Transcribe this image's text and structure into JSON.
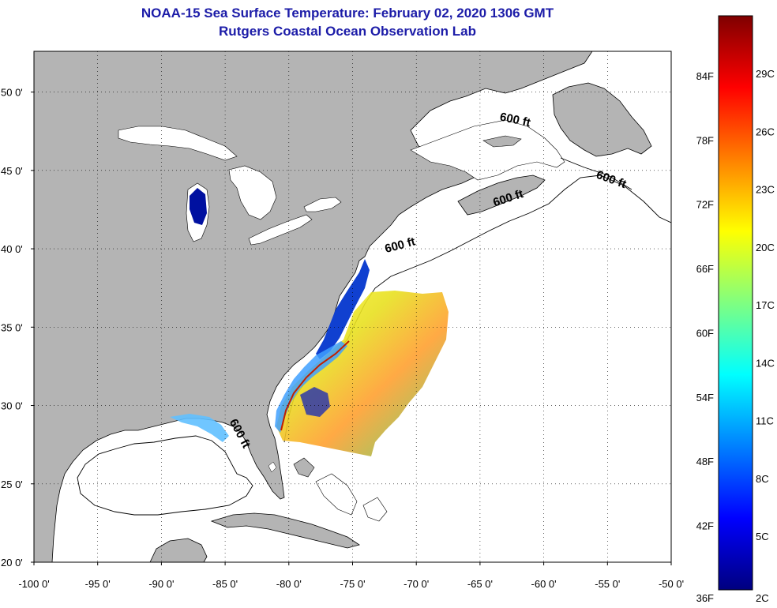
{
  "header": {
    "title": "NOAA-15 Sea Surface Temperature:  February 02, 2020 1306 GMT",
    "subtitle": "Rutgers Coastal Ocean Observation Lab"
  },
  "map": {
    "lon_range": [
      -100,
      -50
    ],
    "lat_range": [
      20,
      52.6
    ],
    "lon_ticks": [
      {
        "value": -100,
        "label": "-100 0'"
      },
      {
        "value": -95,
        "label": "-95 0'"
      },
      {
        "value": -90,
        "label": "-90 0'"
      },
      {
        "value": -85,
        "label": "-85 0'"
      },
      {
        "value": -80,
        "label": "-80 0'"
      },
      {
        "value": -75,
        "label": "-75 0'"
      },
      {
        "value": -70,
        "label": "-70 0'"
      },
      {
        "value": -65,
        "label": "-65 0'"
      },
      {
        "value": -60,
        "label": "-60 0'"
      },
      {
        "value": -55,
        "label": "-55 0'"
      },
      {
        "value": -50,
        "label": "-50 0'"
      }
    ],
    "lat_ticks": [
      {
        "value": 50,
        "label": "50 0'"
      },
      {
        "value": 45,
        "label": "45 0'"
      },
      {
        "value": 40,
        "label": "40 0'"
      },
      {
        "value": 35,
        "label": "35 0'"
      },
      {
        "value": 30,
        "label": "30 0'"
      },
      {
        "value": 25,
        "label": "25 0'"
      },
      {
        "value": 20,
        "label": "20 0'"
      }
    ],
    "grid": "dotted",
    "land_color": "#b4b4b4",
    "ocean_color": "#ffffff",
    "depth_contours": [
      {
        "label": "600 ft",
        "lon": -62.3,
        "lat": 48.0,
        "rotate": 12
      },
      {
        "label": "600 ft",
        "lon": -54.8,
        "lat": 44.2,
        "rotate": 20
      },
      {
        "label": "600 ft",
        "lon": -62.7,
        "lat": 43.0,
        "rotate": -18
      },
      {
        "label": "600 ft",
        "lon": -71.2,
        "lat": 40.0,
        "rotate": -15
      },
      {
        "label": "600 ft",
        "lon": -84.1,
        "lat": 28.1,
        "rotate": 62
      }
    ]
  },
  "colorbar": {
    "f_labels": [
      {
        "label": "84F",
        "value_f": 84
      },
      {
        "label": "78F",
        "value_f": 78
      },
      {
        "label": "72F",
        "value_f": 72
      },
      {
        "label": "66F",
        "value_f": 66
      },
      {
        "label": "60F",
        "value_f": 60
      },
      {
        "label": "54F",
        "value_f": 54
      },
      {
        "label": "48F",
        "value_f": 48
      },
      {
        "label": "42F",
        "value_f": 42
      },
      {
        "label": "36F",
        "value_f": 36
      }
    ],
    "c_labels": [
      {
        "label": "29C",
        "value_c": 29
      },
      {
        "label": "26C",
        "value_c": 26
      },
      {
        "label": "23C",
        "value_c": 23
      },
      {
        "label": "20C",
        "value_c": 20
      },
      {
        "label": "17C",
        "value_c": 17
      },
      {
        "label": "14C",
        "value_c": 14
      },
      {
        "label": "11C",
        "value_c": 11
      },
      {
        "label": "8C",
        "value_c": 8
      },
      {
        "label": "5C",
        "value_c": 5
      },
      {
        "label": "2C",
        "value_c": 2
      }
    ],
    "stops": [
      "#00007f",
      "#0000ff",
      "#0080ff",
      "#00ffff",
      "#80ff80",
      "#ffff00",
      "#ff8000",
      "#ff0000",
      "#7f0000"
    ]
  }
}
